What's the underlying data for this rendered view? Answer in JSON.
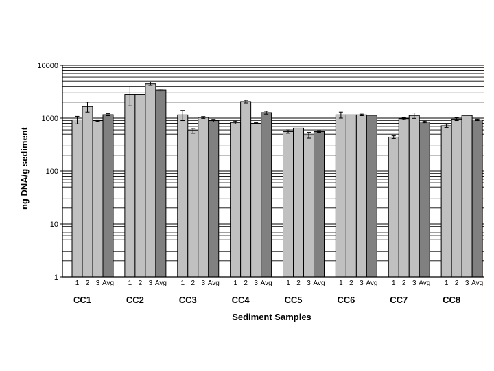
{
  "chart_data": {
    "type": "bar",
    "title": "",
    "xlabel": "Sediment Samples",
    "ylabel": "ng DNA/g sediment",
    "yscale": "log",
    "ylim": [
      1,
      10000
    ],
    "y_ticks": [
      "1",
      "10",
      "100",
      "1000",
      "10000"
    ],
    "grid": "horizontal major and minor",
    "legend": "none",
    "sub_labels": [
      "1",
      "2",
      "3",
      "Avg"
    ],
    "colors": {
      "sample": "#c0c0c0",
      "avg": "#808080",
      "grid": "#000000"
    },
    "groups": [
      {
        "name": "CC1",
        "values": [
          930,
          1650,
          900,
          1160
        ],
        "errors": [
          150,
          350,
          30,
          50
        ]
      },
      {
        "name": "CC2",
        "values": [
          2800,
          2800,
          4500,
          3400
        ],
        "errors": [
          1100,
          0,
          300,
          150
        ]
      },
      {
        "name": "CC3",
        "values": [
          1150,
          580,
          1030,
          900
        ],
        "errors": [
          250,
          60,
          40,
          50
        ]
      },
      {
        "name": "CC4",
        "values": [
          830,
          2050,
          800,
          1270
        ],
        "errors": [
          50,
          120,
          20,
          80
        ]
      },
      {
        "name": "CC5",
        "values": [
          560,
          650,
          480,
          560
        ],
        "errors": [
          40,
          0,
          60,
          20
        ]
      },
      {
        "name": "CC6",
        "values": [
          1150,
          1150,
          1150,
          1130
        ],
        "errors": [
          150,
          0,
          40,
          0
        ]
      },
      {
        "name": "CC7",
        "values": [
          440,
          980,
          1120,
          850
        ],
        "errors": [
          25,
          40,
          130,
          30
        ]
      },
      {
        "name": "CC8",
        "values": [
          720,
          960,
          1120,
          930
        ],
        "errors": [
          50,
          60,
          0,
          30
        ]
      }
    ]
  }
}
